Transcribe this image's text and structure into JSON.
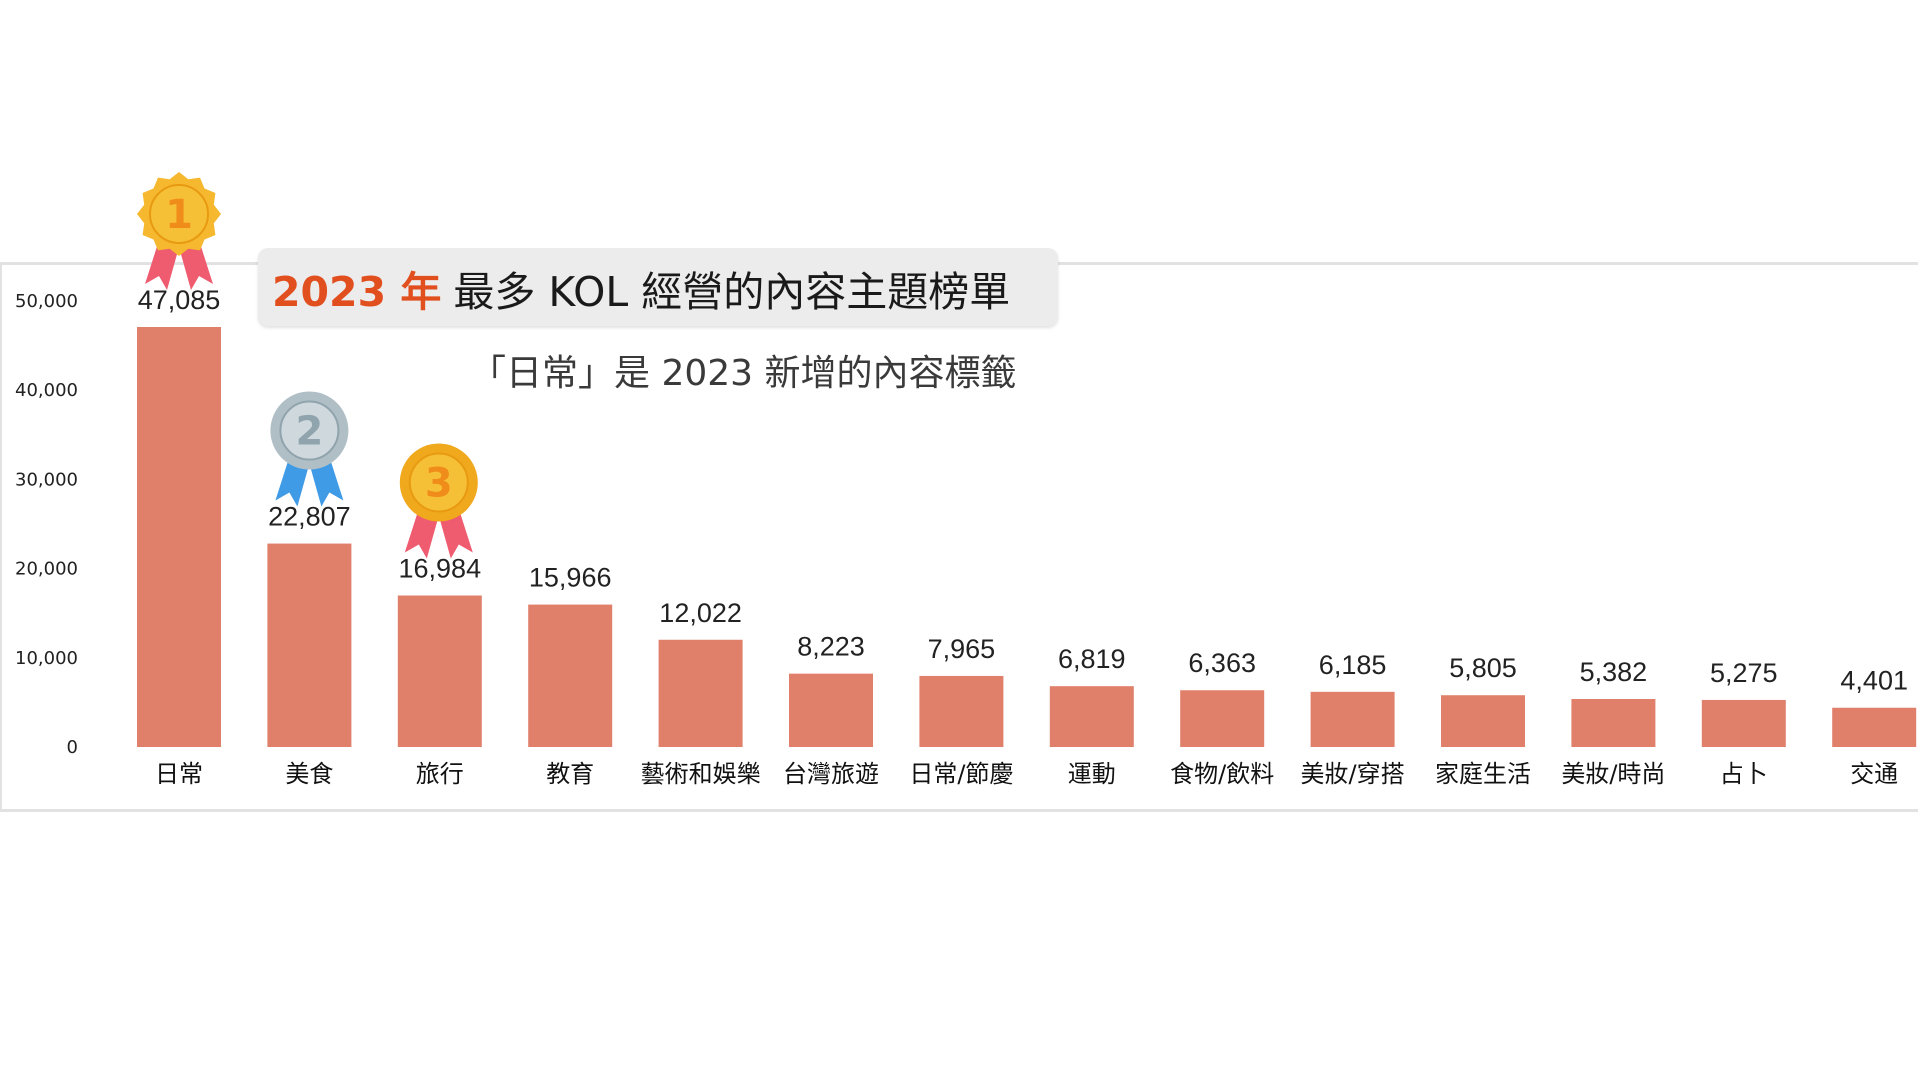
{
  "chart_data": {
    "type": "bar",
    "title_accent": "2023 年",
    "title": "最多 KOL 經營的內容主題榜單",
    "subtitle": "「日常」是 2023 新增的內容標籤",
    "categories": [
      "日常",
      "美食",
      "旅行",
      "教育",
      "藝術和娛樂",
      "台灣旅遊",
      "日常/節慶",
      "運動",
      "食物/飲料",
      "美妝/穿搭",
      "家庭生活",
      "美妝/時尚",
      "占卜",
      "交通"
    ],
    "values": [
      47085,
      22807,
      16984,
      15966,
      12022,
      8223,
      7965,
      6819,
      6363,
      6185,
      5805,
      5382,
      5275,
      4401
    ],
    "value_labels": [
      "47,085",
      "22,807",
      "16,984",
      "15,966",
      "12,022",
      "8,223",
      "7,965",
      "6,819",
      "6,363",
      "6,185",
      "5,805",
      "5,382",
      "5,275",
      "4,401"
    ],
    "yticks": [
      0,
      10000,
      20000,
      30000,
      40000,
      50000
    ],
    "ytick_labels": [
      "0",
      "10,000",
      "20,000",
      "30,000",
      "40,000",
      "50,000"
    ],
    "ylim": [
      0,
      50000
    ],
    "xlabel": "",
    "ylabel": "",
    "grid": false,
    "bar_color": "#e0806b",
    "medals": [
      {
        "rank": "1",
        "color": "#f6c036",
        "ribbon": "#ef5b6f"
      },
      {
        "rank": "2",
        "color": "#cfd8dc",
        "ribbon": "#3f9be6"
      },
      {
        "rank": "3",
        "color": "#f6c036",
        "ribbon": "#ef5b6f"
      }
    ]
  },
  "colors": {
    "title_accent": "#e24f1f",
    "frame": "#e2e2e2",
    "text": "#1a1a1a"
  }
}
